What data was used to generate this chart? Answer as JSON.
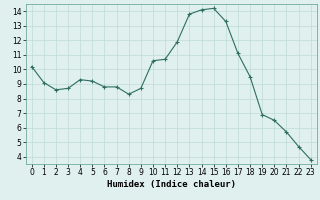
{
  "x": [
    0,
    1,
    2,
    3,
    4,
    5,
    6,
    7,
    8,
    9,
    10,
    11,
    12,
    13,
    14,
    15,
    16,
    17,
    18,
    19,
    20,
    21,
    22,
    23
  ],
  "y": [
    10.2,
    9.1,
    8.6,
    8.7,
    9.3,
    9.2,
    8.8,
    8.8,
    8.3,
    8.7,
    10.6,
    10.7,
    11.9,
    13.8,
    14.1,
    14.2,
    13.3,
    11.1,
    9.5,
    6.9,
    6.5,
    5.7,
    4.7,
    3.8
  ],
  "xlabel": "Humidex (Indice chaleur)",
  "xlim": [
    -0.5,
    23.5
  ],
  "ylim": [
    3.5,
    14.5
  ],
  "yticks": [
    4,
    5,
    6,
    7,
    8,
    9,
    10,
    11,
    12,
    13,
    14
  ],
  "xticks": [
    0,
    1,
    2,
    3,
    4,
    5,
    6,
    7,
    8,
    9,
    10,
    11,
    12,
    13,
    14,
    15,
    16,
    17,
    18,
    19,
    20,
    21,
    22,
    23
  ],
  "line_color": "#2e6e62",
  "marker": "+",
  "bg_color": "#dff0ee",
  "grid_color": "#c0dbd8",
  "label_fontsize": 6.5,
  "tick_fontsize": 5.5
}
